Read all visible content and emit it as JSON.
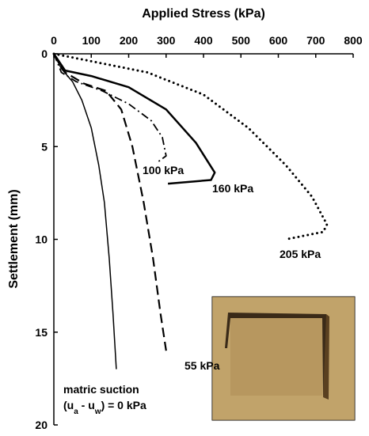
{
  "chart_data": {
    "type": "line",
    "xlabel": "Applied Stress (kPa)",
    "ylabel": "Settlement (mm)",
    "xlim": [
      0,
      800
    ],
    "xticks": [
      0,
      100,
      200,
      300,
      400,
      500,
      600,
      700,
      800
    ],
    "ylim": [
      0,
      20
    ],
    "yticks": [
      0,
      5,
      10,
      15,
      20
    ],
    "y_inverted": true,
    "x_axis_position": "top",
    "series": [
      {
        "style": "solid-thin",
        "color": "#000000",
        "x": [
          0,
          20,
          50,
          75,
          100,
          120,
          135,
          148,
          158,
          167
        ],
        "values": [
          0,
          0.8,
          1.5,
          2.5,
          4,
          6,
          8,
          11,
          14,
          17
        ]
      },
      {
        "name": "55 kPa",
        "style": "dashed",
        "color": "#000000",
        "x": [
          0,
          30,
          80,
          140,
          180,
          210,
          240,
          265,
          285,
          300
        ],
        "values": [
          0,
          1,
          1.6,
          2,
          3,
          5,
          8,
          11,
          14,
          16
        ]
      },
      {
        "name": "100 kPa",
        "style": "dashdot",
        "color": "#000000",
        "x": [
          0,
          20,
          60,
          130,
          200,
          260,
          290,
          300,
          280
        ],
        "values": [
          0,
          1,
          1.5,
          2,
          2.7,
          3.6,
          4.5,
          5.5,
          5.8
        ]
      },
      {
        "name": "160 kPa",
        "style": "solid",
        "color": "#000000",
        "x": [
          0,
          30,
          100,
          200,
          300,
          380,
          430,
          420,
          305
        ],
        "values": [
          0,
          0.9,
          1.2,
          1.8,
          3,
          4.8,
          6.4,
          6.8,
          7
        ]
      },
      {
        "name": "205 kPa",
        "style": "dotted",
        "color": "#000000",
        "x": [
          0,
          100,
          250,
          400,
          520,
          620,
          690,
          730,
          720,
          670,
          620
        ],
        "values": [
          0,
          0.4,
          1,
          2.2,
          4,
          6,
          7.7,
          9.2,
          9.6,
          9.8,
          10
        ]
      }
    ],
    "annotation": {
      "line1": "matric suction",
      "line2_parts": [
        "(u",
        "a",
        " - u",
        "w",
        ") = 0 kPa"
      ]
    }
  }
}
